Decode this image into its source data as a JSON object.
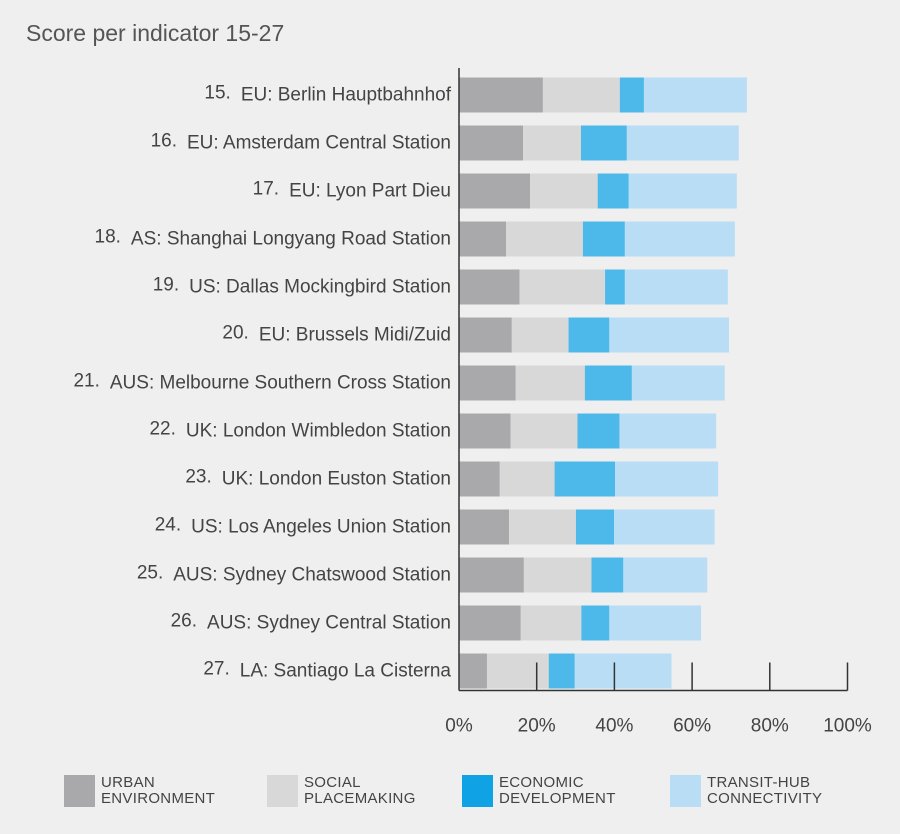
{
  "chart_data": {
    "type": "bar",
    "orientation": "horizontal",
    "stacked": true,
    "title": "Score per indicator 15-27",
    "xlabel": "",
    "ylabel": "",
    "xlim": [
      0,
      100
    ],
    "x_ticks": [
      "0%",
      "20%",
      "40%",
      "60%",
      "80%",
      "100%"
    ],
    "grid": false,
    "legend_position": "bottom",
    "categories": [
      {
        "rank": "15.",
        "name": "EU: Berlin Hauptbahnhof"
      },
      {
        "rank": "16.",
        "name": "EU: Amsterdam Central Station"
      },
      {
        "rank": "17.",
        "name": "EU: Lyon Part Dieu"
      },
      {
        "rank": "18.",
        "name": "AS: Shanghai Longyang Road Station"
      },
      {
        "rank": "19.",
        "name": "US: Dallas Mockingbird Station"
      },
      {
        "rank": "20.",
        "name": "EU: Brussels Midi/Zuid"
      },
      {
        "rank": "21.",
        "name": "AUS: Melbourne Southern Cross Station"
      },
      {
        "rank": "22.",
        "name": "UK: London Wimbledon Station"
      },
      {
        "rank": "23.",
        "name": "UK: London Euston Station"
      },
      {
        "rank": "24.",
        "name": "US: Los Angeles Union Station"
      },
      {
        "rank": "25.",
        "name": "AUS: Sydney Chatswood Station"
      },
      {
        "rank": "26.",
        "name": "AUS: Sydney Central Station"
      },
      {
        "rank": "27.",
        "name": "LA: Santiago La Cisterna"
      }
    ],
    "series": [
      {
        "name": "URBAN\nENVIRONMENT",
        "color": "#a9a9ab",
        "values": [
          21.6,
          16.5,
          18.3,
          12.1,
          15.6,
          13.6,
          14.6,
          13.3,
          10.5,
          12.9,
          16.7,
          15.9,
          7.2
        ]
      },
      {
        "name": "SOCIAL\nPLACEMAKING",
        "color": "#d8d8d8",
        "values": [
          19.8,
          14.9,
          17.4,
          19.8,
          22.0,
          14.6,
          17.8,
          17.2,
          14.1,
          17.2,
          17.4,
          15.6,
          15.9
        ]
      },
      {
        "name": "ECONOMIC\nDEVELOPMENT",
        "color": "#4db8ea",
        "values": [
          6.2,
          11.8,
          8.0,
          10.8,
          5.1,
          10.5,
          12.1,
          10.8,
          15.6,
          9.8,
          8.2,
          7.2,
          6.7
        ]
      },
      {
        "name": "TRANSIT-HUB\nCONNECTIVITY",
        "color": "#b8ddf5",
        "values": [
          26.5,
          28.8,
          27.8,
          28.3,
          26.5,
          30.8,
          23.9,
          24.9,
          26.5,
          25.9,
          21.6,
          23.6,
          24.9
        ]
      }
    ]
  },
  "legend": [
    {
      "label": "URBAN\nENVIRONMENT",
      "color": "#a9a9ab"
    },
    {
      "label": "SOCIAL\nPLACEMAKING",
      "color": "#d8d8d8"
    },
    {
      "label": "ECONOMIC\nDEVELOPMENT",
      "color": "#0fa3e5"
    },
    {
      "label": "TRANSIT-HUB\nCONNECTIVITY",
      "color": "#b8ddf5"
    }
  ]
}
